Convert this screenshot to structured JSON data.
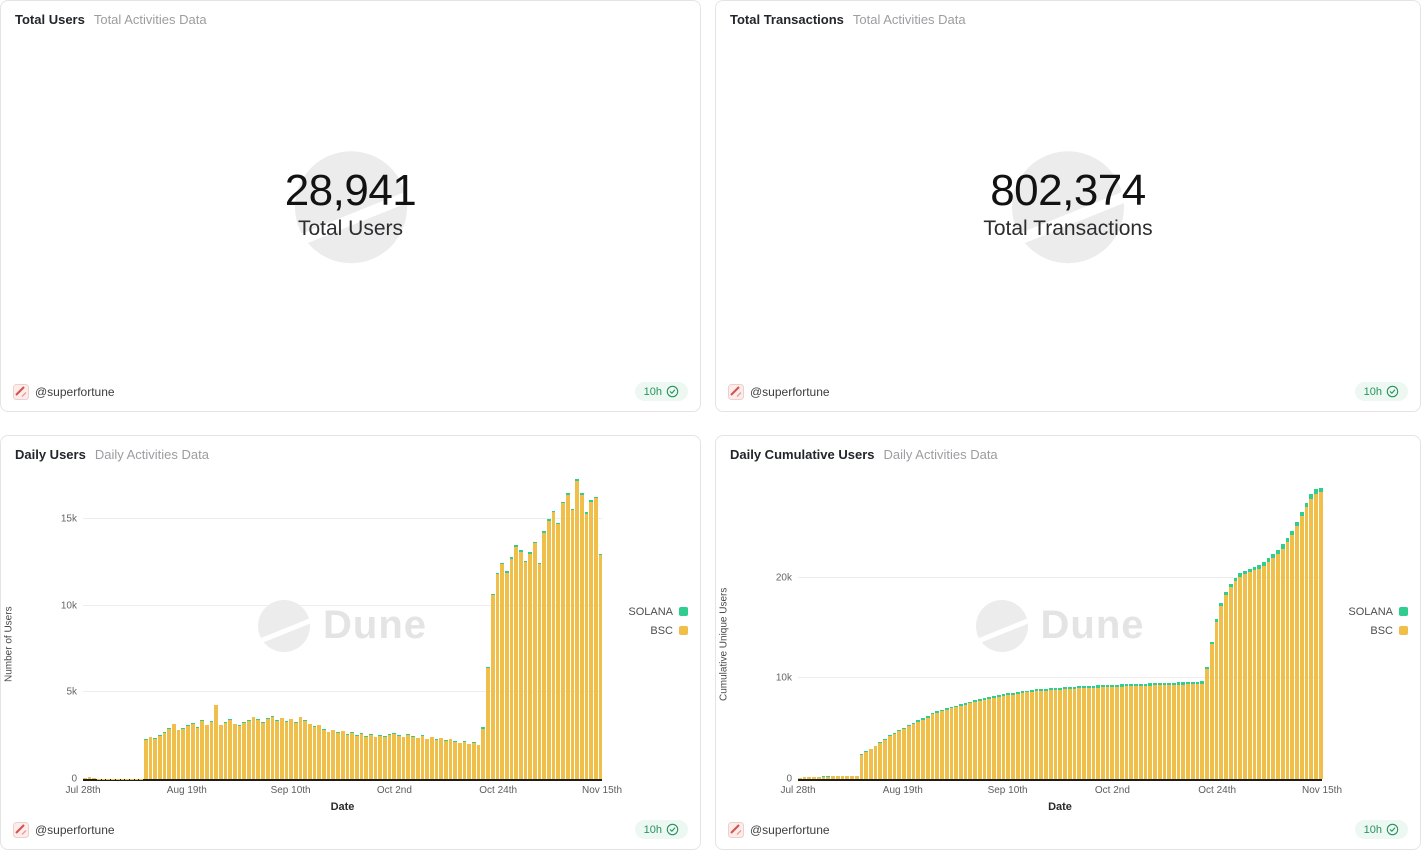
{
  "author": {
    "handle": "@superfortune"
  },
  "refresh_badge": {
    "label": "10h"
  },
  "watermark": {
    "brand": "Dune"
  },
  "counters": [
    {
      "title": "Total Users",
      "subtitle": "Total Activities Data",
      "value": "28,941",
      "label": "Total Users"
    },
    {
      "title": "Total Transactions",
      "subtitle": "Total Activities Data",
      "value": "802,374",
      "label": "Total Transactions"
    }
  ],
  "chart_data": [
    {
      "type": "bar",
      "stacked": true,
      "title": "Daily Users",
      "subtitle": "Daily Activities Data",
      "xlabel": "Date",
      "ylabel": "Number of Users",
      "ymax": 17700,
      "grid": "horizontal",
      "legend_position": "right",
      "y_ticks": [
        {
          "value": 0,
          "label": "0"
        },
        {
          "value": 5000,
          "label": "5k"
        },
        {
          "value": 10000,
          "label": "10k"
        },
        {
          "value": 15000,
          "label": "15k"
        }
      ],
      "x_ticks": [
        {
          "index": 0,
          "label": "Jul 28th"
        },
        {
          "index": 22,
          "label": "Aug 19th"
        },
        {
          "index": 44,
          "label": "Sep 10th"
        },
        {
          "index": 66,
          "label": "Oct 2nd"
        },
        {
          "index": 88,
          "label": "Oct 24th"
        },
        {
          "index": 110,
          "label": "Nov 15th"
        }
      ],
      "legend": [
        {
          "name": "SOLANA",
          "color": "#2fce90"
        },
        {
          "name": "BSC",
          "color": "#f0bf4a"
        }
      ],
      "series": [
        {
          "name": "BSC",
          "color": "#f0bf4a",
          "values": [
            70,
            110,
            45,
            25,
            15,
            10,
            10,
            10,
            10,
            10,
            15,
            15,
            20,
            2250,
            2400,
            2300,
            2500,
            2650,
            2900,
            3150,
            2800,
            2900,
            3050,
            3200,
            2950,
            3350,
            3100,
            3300,
            4250,
            3100,
            3250,
            3400,
            3150,
            3050,
            3250,
            3350,
            3550,
            3400,
            3250,
            3450,
            3600,
            3350,
            3500,
            3300,
            3450,
            3250,
            3550,
            3350,
            3150,
            3000,
            3100,
            2850,
            2700,
            2800,
            2650,
            2750,
            2550,
            2650,
            2500,
            2600,
            2450,
            2550,
            2400,
            2500,
            2450,
            2550,
            2600,
            2500,
            2400,
            2550,
            2450,
            2350,
            2500,
            2300,
            2400,
            2250,
            2350,
            2200,
            2300,
            2150,
            2050,
            2150,
            2000,
            2100,
            1950,
            2900,
            6400,
            10600,
            11800,
            12400,
            11900,
            12700,
            13400,
            13100,
            12500,
            13000,
            13600,
            12400,
            14200,
            14900,
            15400,
            14700,
            15900,
            16400,
            15500,
            17200,
            16400,
            15300,
            16000,
            16200,
            12900
          ]
        },
        {
          "name": "SOLANA",
          "color": "#2fce90",
          "values": [
            10,
            15,
            5,
            5,
            5,
            5,
            5,
            5,
            5,
            5,
            5,
            5,
            5,
            40,
            40,
            40,
            40,
            40,
            40,
            40,
            40,
            40,
            40,
            40,
            40,
            40,
            40,
            40,
            40,
            40,
            40,
            40,
            40,
            40,
            40,
            40,
            40,
            40,
            40,
            40,
            40,
            40,
            40,
            40,
            35,
            35,
            35,
            35,
            35,
            35,
            35,
            35,
            35,
            35,
            35,
            35,
            35,
            35,
            35,
            35,
            35,
            35,
            35,
            35,
            35,
            30,
            30,
            30,
            30,
            30,
            30,
            30,
            30,
            30,
            30,
            30,
            30,
            30,
            30,
            30,
            30,
            30,
            30,
            30,
            30,
            80,
            80,
            80,
            80,
            80,
            80,
            80,
            80,
            80,
            80,
            80,
            80,
            80,
            80,
            80,
            80,
            80,
            80,
            80,
            80,
            80,
            80,
            80,
            80,
            80,
            80
          ]
        }
      ]
    },
    {
      "type": "bar",
      "stacked": true,
      "title": "Daily Cumulative Users",
      "subtitle": "Daily Activities Data",
      "xlabel": "Date",
      "ylabel": "Cumulative Unique Users",
      "ymax": 30500,
      "grid": "horizontal",
      "legend_position": "right",
      "y_ticks": [
        {
          "value": 0,
          "label": "0"
        },
        {
          "value": 10000,
          "label": "10k"
        },
        {
          "value": 20000,
          "label": "20k"
        }
      ],
      "x_ticks": [
        {
          "index": 0,
          "label": "Jul 28th"
        },
        {
          "index": 22,
          "label": "Aug 19th"
        },
        {
          "index": 44,
          "label": "Sep 10th"
        },
        {
          "index": 66,
          "label": "Oct 2nd"
        },
        {
          "index": 88,
          "label": "Oct 24th"
        },
        {
          "index": 110,
          "label": "Nov 15th"
        }
      ],
      "legend": [
        {
          "name": "SOLANA",
          "color": "#2fce90"
        },
        {
          "name": "BSC",
          "color": "#f0bf4a"
        }
      ],
      "series": [
        {
          "name": "BSC",
          "color": "#f0bf4a",
          "values": [
            70,
            160,
            200,
            220,
            230,
            240,
            245,
            250,
            255,
            260,
            268,
            275,
            285,
            2400,
            2700,
            2950,
            3250,
            3550,
            3900,
            4250,
            4500,
            4750,
            5000,
            5250,
            5450,
            5700,
            5900,
            6100,
            6450,
            6600,
            6750,
            6900,
            7020,
            7130,
            7250,
            7380,
            7520,
            7640,
            7740,
            7850,
            7960,
            8050,
            8150,
            8230,
            8320,
            8390,
            8470,
            8540,
            8600,
            8650,
            8700,
            8740,
            8780,
            8820,
            8855,
            8890,
            8920,
            8950,
            8975,
            9000,
            9025,
            9050,
            9070,
            9090,
            9110,
            9130,
            9150,
            9170,
            9185,
            9205,
            9220,
            9235,
            9255,
            9270,
            9285,
            9300,
            9315,
            9330,
            9345,
            9360,
            9372,
            9385,
            9398,
            9412,
            9425,
            9480,
            10900,
            13400,
            15600,
            17200,
            18300,
            19100,
            19700,
            20100,
            20350,
            20550,
            20750,
            20900,
            21200,
            21600,
            22000,
            22400,
            22900,
            23500,
            24200,
            25100,
            26100,
            27000,
            27800,
            28300,
            28500
          ]
        },
        {
          "name": "SOLANA",
          "color": "#2fce90",
          "values": [
            15,
            15,
            15,
            15,
            15,
            15,
            15,
            15,
            15,
            15,
            15,
            15,
            15,
            60,
            65,
            70,
            75,
            80,
            85,
            90,
            95,
            100,
            105,
            110,
            115,
            120,
            125,
            130,
            135,
            140,
            143,
            146,
            150,
            153,
            156,
            160,
            163,
            166,
            170,
            173,
            176,
            180,
            183,
            186,
            190,
            191,
            192,
            193,
            194,
            195,
            196,
            197,
            198,
            199,
            200,
            201,
            202,
            203,
            204,
            205,
            206,
            207,
            208,
            209,
            210,
            211,
            212,
            213,
            214,
            215,
            216,
            217,
            218,
            219,
            220,
            221,
            222,
            223,
            224,
            225,
            226,
            227,
            228,
            229,
            230,
            240,
            250,
            260,
            270,
            280,
            290,
            300,
            310,
            320,
            330,
            340,
            350,
            360,
            370,
            380,
            390,
            400,
            410,
            420,
            430,
            440,
            450,
            460,
            470,
            480,
            460
          ]
        }
      ]
    }
  ]
}
